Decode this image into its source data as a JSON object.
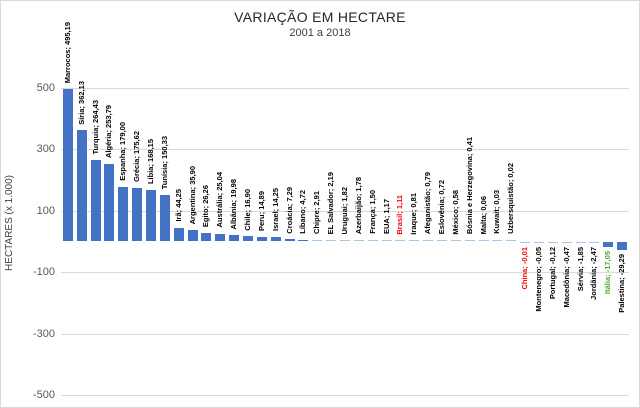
{
  "chart_data": {
    "type": "bar",
    "title": "VARIAÇÃO EM HECTARE",
    "subtitle": "2001 a 2018",
    "xlabel": "",
    "ylabel": "HECTARES (x 1.000)",
    "ylim": [
      -500,
      500
    ],
    "yticks": [
      500,
      300,
      100,
      -100,
      -300,
      -500
    ],
    "grid": true,
    "legend_position": "none",
    "bar_color": "#4472C4",
    "tiny_bar_color": "#A8C6EA",
    "default_label_color": "#000000",
    "points": [
      {
        "name": "Marrocos",
        "value": 495.19,
        "label": "Marrocos; 495,19"
      },
      {
        "name": "Síria",
        "value": 362.13,
        "label": "Síria; 362,13"
      },
      {
        "name": "Turquia",
        "value": 264.43,
        "label": "Turquia; 264,43"
      },
      {
        "name": "Algéria",
        "value": 253.79,
        "label": "Algéria; 253,79"
      },
      {
        "name": "Espanha",
        "value": 179.0,
        "label": "Espanha; 179,00"
      },
      {
        "name": "Grécia",
        "value": 175.62,
        "label": "Grécia; 175,62"
      },
      {
        "name": "Líbia",
        "value": 168.15,
        "label": "Líbia; 168,15"
      },
      {
        "name": "Tunísia",
        "value": 150.33,
        "label": "Tunísia; 150,33"
      },
      {
        "name": "Irã",
        "value": 44.25,
        "label": "Irã; 44,25"
      },
      {
        "name": "Argentina",
        "value": 35.9,
        "label": "Argentina; 35,90"
      },
      {
        "name": "Egito",
        "value": 26.26,
        "label": "Egito; 26,26"
      },
      {
        "name": "Austrália",
        "value": 25.04,
        "label": "Austrália; 25,04"
      },
      {
        "name": "Albânia",
        "value": 19.98,
        "label": "Albânia; 19,98"
      },
      {
        "name": "Chile",
        "value": 16.9,
        "label": "Chile; 16,90"
      },
      {
        "name": "Peru",
        "value": 14.89,
        "label": "Peru; 14,89"
      },
      {
        "name": "Israel",
        "value": 14.25,
        "label": "Israel; 14,25"
      },
      {
        "name": "Croácia",
        "value": 7.29,
        "label": "Croácia; 7,29"
      },
      {
        "name": "Líbano",
        "value": 4.72,
        "label": "Líbano; 4,72"
      },
      {
        "name": "Chipre",
        "value": 2.91,
        "label": "Chipre; 2,91"
      },
      {
        "name": "EL Salvador",
        "value": 2.19,
        "label": "EL Salvador; 2,19"
      },
      {
        "name": "Uruguai",
        "value": 1.82,
        "label": "Uruguai; 1,82"
      },
      {
        "name": "Azerbaijão",
        "value": 1.78,
        "label": "Azerbaijão; 1,78"
      },
      {
        "name": "França",
        "value": 1.5,
        "label": "França; 1,50"
      },
      {
        "name": "EUA",
        "value": 1.17,
        "label": "EUA; 1,17"
      },
      {
        "name": "Brasil",
        "value": 1.11,
        "label": "Brasil; 1,11",
        "color": "#FF0000"
      },
      {
        "name": "Iraque",
        "value": 0.81,
        "label": "Iraque; 0,81"
      },
      {
        "name": "Afeganistão",
        "value": 0.79,
        "label": "Afeganistão; 0,79"
      },
      {
        "name": "Eslovênia",
        "value": 0.72,
        "label": "Eslovênia; 0,72"
      },
      {
        "name": "México",
        "value": 0.58,
        "label": "México; 0,58"
      },
      {
        "name": "Bósnia e Herzegovina",
        "value": 0.41,
        "label": "Bósnia e Herzegovina; 0,41"
      },
      {
        "name": "Malta",
        "value": 0.06,
        "label": "Malta; 0,06"
      },
      {
        "name": "Kuwait",
        "value": 0.03,
        "label": "Kuwait; 0,03"
      },
      {
        "name": "Uzbersquistão",
        "value": 0.02,
        "label": "Uzbersquistão; 0,02"
      },
      {
        "name": "China",
        "value": -0.01,
        "label": "China; -0,01",
        "color": "#FF0000"
      },
      {
        "name": "Montenegro",
        "value": -0.05,
        "label": "Montenegro; -0,05"
      },
      {
        "name": "Portugal",
        "value": -0.12,
        "label": "Portugal; -0,12"
      },
      {
        "name": "Macedônia",
        "value": -0.47,
        "label": "Macedônia; -0,47"
      },
      {
        "name": "Sérvia",
        "value": -1.85,
        "label": "Sérvia; -1,85"
      },
      {
        "name": "Jordânia",
        "value": -2.47,
        "label": "Jordânia; -2,47"
      },
      {
        "name": "Itália",
        "value": -17.05,
        "label": "Itália; -17,05",
        "color": "#4EA72E"
      },
      {
        "name": "Palestina",
        "value": -29.29,
        "label": "Palestina; -29,29"
      }
    ]
  }
}
